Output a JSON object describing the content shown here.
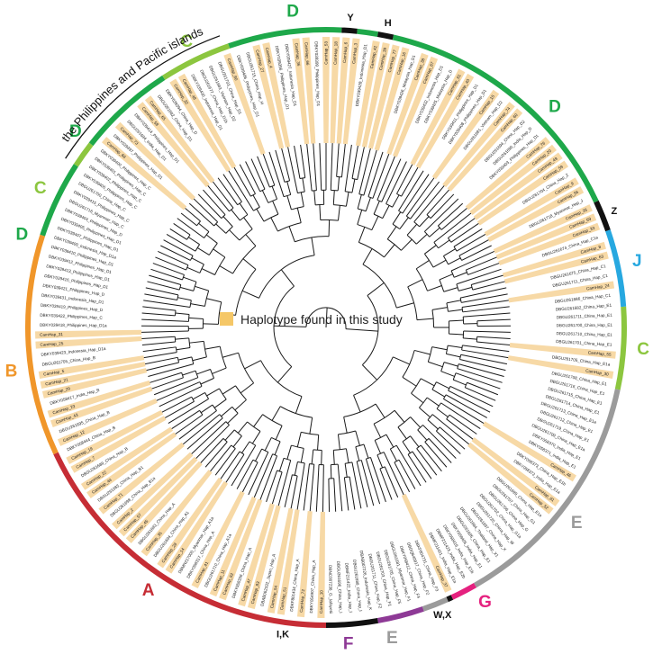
{
  "legend": {
    "text": "Haplotype found in this study",
    "color": "#F5C767"
  },
  "colors": {
    "A": "#C62D35",
    "B": "#F0962A",
    "C": "#8CC63F",
    "D": "#1EA84A",
    "E": "#9B9B9B",
    "F": "#8E3A96",
    "G": "#E5217F",
    "J": "#27A8E0",
    "black": "#111111",
    "highlight": "#F7D9A6",
    "branch": "#1a1a1a"
  },
  "region_label": "the Philippines and Pacific islands",
  "clades": [
    {
      "label": "A",
      "color": "#C62D35",
      "start": 90,
      "end": 155
    },
    {
      "label": "B",
      "color": "#F0962A",
      "start": 155,
      "end": 198
    },
    {
      "label": "D",
      "color": "#1EA84A",
      "start": 198,
      "end": 213
    },
    {
      "label": "C",
      "color": "#8CC63F",
      "start": 213,
      "end": 218
    },
    {
      "label": "D",
      "color": "#1EA84A",
      "start": 218,
      "end": 237
    },
    {
      "label": "C",
      "color": "#8CC63F",
      "start": 237,
      "end": 251
    },
    {
      "label": "D",
      "color": "#1EA84A",
      "start": 251,
      "end": 273
    },
    {
      "label": "Y",
      "color": "#111111",
      "start": 273,
      "end": 276
    },
    {
      "label": "",
      "color": "#1EA84A",
      "start": 276,
      "end": 280
    },
    {
      "label": "H",
      "color": "#111111",
      "start": 280,
      "end": 283
    },
    {
      "label": "D",
      "color": "#1EA84A",
      "start": 283,
      "end": 335
    },
    {
      "label": "Z",
      "color": "#111111",
      "start": 335,
      "end": 341
    },
    {
      "label": "J",
      "color": "#27A8E0",
      "start": 341,
      "end": 356
    },
    {
      "label": "C",
      "color": "#8CC63F",
      "start": 356,
      "end": 372
    },
    {
      "label": "E",
      "color": "#9B9B9B",
      "start": 372,
      "end": 420
    },
    {
      "label": "G",
      "color": "#E5217F",
      "start": 420,
      "end": 425
    },
    {
      "label": "W,X",
      "color": "#111111",
      "start": 425,
      "end": 426
    },
    {
      "label": "E",
      "color": "#9B9B9B",
      "start": 426,
      "end": 431
    },
    {
      "label": "F",
      "color": "#8E3A96",
      "start": 431,
      "end": 440
    },
    {
      "label": "I,K",
      "color": "#111111",
      "start": 440,
      "end": 450
    }
  ],
  "clade_labels": [
    {
      "text": "A",
      "color": "#C62D35",
      "angle": 124
    },
    {
      "text": "B",
      "color": "#F0962A",
      "angle": 172
    },
    {
      "text": "D",
      "color": "#1EA84A",
      "angle": 197
    },
    {
      "text": "C",
      "color": "#8CC63F",
      "angle": 206
    },
    {
      "text": "D",
      "color": "#1EA84A",
      "angle": 218
    },
    {
      "text": "C",
      "color": "#8CC63F",
      "angle": 244
    },
    {
      "text": "D",
      "color": "#1EA84A",
      "angle": 264
    },
    {
      "text": "Y",
      "color": "#111111",
      "angle": 274.5
    },
    {
      "text": "H",
      "color": "#111111",
      "angle": 281.5
    },
    {
      "text": "D",
      "color": "#1EA84A",
      "angle": 316
    },
    {
      "text": "Z",
      "color": "#111111",
      "angle": 338
    },
    {
      "text": "J",
      "color": "#27A8E0",
      "angle": 348
    },
    {
      "text": "C",
      "color": "#8CC63F",
      "angle": 364
    },
    {
      "text": "E",
      "color": "#9B9B9B",
      "angle": 398
    },
    {
      "text": "G",
      "color": "#E5217F",
      "angle": 420
    },
    {
      "text": "W,X",
      "color": "#111111",
      "angle": 428
    },
    {
      "text": "E",
      "color": "#9B9B9B",
      "angle": 438
    },
    {
      "text": "F",
      "color": "#8E3A96",
      "angle": 446
    },
    {
      "text": "I,K",
      "color": "#111111",
      "angle": 458
    }
  ],
  "leaves": [
    {
      "text": "CamHap_10",
      "highlight": true
    },
    {
      "text": "DBKY054907_China_Hap_A",
      "highlight": false
    },
    {
      "text": "CamHap_72",
      "highlight": true
    },
    {
      "text": "DBKF801434_China_Hap_A",
      "highlight": false
    },
    {
      "text": "CamHap_51",
      "highlight": true
    },
    {
      "text": "CamHap_54",
      "highlight": true
    },
    {
      "text": "DBAB062332_Japan_Hap_A",
      "highlight": false
    },
    {
      "text": "CamHap_83",
      "highlight": true
    },
    {
      "text": "CamHap_47",
      "highlight": true
    },
    {
      "text": "DBKY058336_China_Hap_A",
      "highlight": false
    },
    {
      "text": "CamHap_62",
      "highlight": true
    },
    {
      "text": "CamHap_11",
      "highlight": true
    },
    {
      "text": "DBGU261710_China_Hap_A1a",
      "highlight": false
    },
    {
      "text": "CamHap_41",
      "highlight": true
    },
    {
      "text": "DBKY058317_China_Hap_A",
      "highlight": false
    },
    {
      "text": "DBMN217000_Myanmar_Hap_A1a",
      "highlight": false
    },
    {
      "text": "CamHap_14",
      "highlight": true
    },
    {
      "text": "CamHap_28",
      "highlight": true
    },
    {
      "text": "DBGU261694_China_Hap_A1",
      "highlight": false
    },
    {
      "text": "CamHap_35",
      "highlight": true
    },
    {
      "text": "DBGU261683_China_Hap_A",
      "highlight": false
    },
    {
      "text": "CamHap_45",
      "highlight": true
    },
    {
      "text": "CamHap_57",
      "highlight": true
    },
    {
      "text": "CamHap_2",
      "highlight": true
    },
    {
      "text": "DBGU261698_China_Hap_B1a",
      "highlight": false
    },
    {
      "text": "CamHap_71",
      "highlight": true
    },
    {
      "text": "DBGU261683_China_Hap_B1",
      "highlight": false
    },
    {
      "text": "CamHap_44",
      "highlight": true
    },
    {
      "text": "CamHap_22",
      "highlight": true
    },
    {
      "text": "DBGU261689_China_Hap_B",
      "highlight": false
    },
    {
      "text": "CamHap_7",
      "highlight": true
    },
    {
      "text": "CamHap_19",
      "highlight": true
    },
    {
      "text": "DBKY058444_China_Hap_B",
      "highlight": false
    },
    {
      "text": "CamHap_12",
      "highlight": true
    },
    {
      "text": "DBGU261695_China_Hap_B",
      "highlight": false
    },
    {
      "text": "CamHap_43",
      "highlight": true
    },
    {
      "text": "CamHap_23",
      "highlight": true
    },
    {
      "text": "DBKY058417_India_Hap_B",
      "highlight": false
    },
    {
      "text": "CamHap_29",
      "highlight": true
    },
    {
      "text": "CamHap_21",
      "highlight": true
    },
    {
      "text": "CamHap_5",
      "highlight": true
    },
    {
      "text": "DBGU261705_China_Hap_B",
      "highlight": false
    },
    {
      "text": "DBKY039423_Indonesia_Hap_D1a",
      "highlight": false
    },
    {
      "text": "CamHap_25",
      "highlight": true
    },
    {
      "text": "CamHap_31",
      "highlight": true
    },
    {
      "text": "DBKY039418_Philippines_Hap_D1a",
      "highlight": false
    },
    {
      "text": "DBKY039422_Philippines_Hap_C",
      "highlight": false
    },
    {
      "text": "DBKY039419_Philippines_Hap_D",
      "highlight": false
    },
    {
      "text": "DBKY039431_Indonesia_Hap_D1",
      "highlight": false
    },
    {
      "text": "DBKY039421_Philippines_Hap_D",
      "highlight": false
    },
    {
      "text": "DBKY039416_Philippines_Hap_D1",
      "highlight": false
    },
    {
      "text": "DBKY039413_Philippines_Hap_D1",
      "highlight": false
    },
    {
      "text": "DBKY039412_Philippines_Hap_D1",
      "highlight": false
    },
    {
      "text": "DBKY039410_Philippines_Hap_D1",
      "highlight": false
    },
    {
      "text": "DBKY039409_Indonesia_Hap_D1a",
      "highlight": false
    },
    {
      "text": "DBKY039407_Philippines_Hap_D1",
      "highlight": false
    },
    {
      "text": "DBKY039405_Philippines_Hap_D1",
      "highlight": false
    },
    {
      "text": "DBKY039404_Philippines_Hap_D",
      "highlight": false
    },
    {
      "text": "DBGU261716_Myanmar_Hap_C",
      "highlight": false
    },
    {
      "text": "DBKY039415_Philippines_Hap_C",
      "highlight": false
    },
    {
      "text": "DBGU261700_China_Hap_C",
      "highlight": false
    },
    {
      "text": "DBKY039406_Philippines_Hap_C",
      "highlight": false
    },
    {
      "text": "DBKY039402_Philippines_Hap_C",
      "highlight": false
    },
    {
      "text": "DBKY039401_Philippines_Hap_C",
      "highlight": false
    },
    {
      "text": "DBKY039400_Philippines_Hap_C",
      "highlight": false
    },
    {
      "text": "CamHap_68",
      "highlight": true
    },
    {
      "text": "DBKY039397_Philippines_Hap_D1",
      "highlight": false
    },
    {
      "text": "CamHap_73",
      "highlight": true
    },
    {
      "text": "DBGU261694_India_Hap_D1",
      "highlight": false
    },
    {
      "text": "DBKY039414_Philippines_Hap_D1",
      "highlight": false
    },
    {
      "text": "CamHap_58",
      "highlight": true
    },
    {
      "text": "CamHap_65",
      "highlight": true
    },
    {
      "text": "DBGU261682_China_Hap_D1",
      "highlight": false
    },
    {
      "text": "DBKY039394_China_Hap_D",
      "highlight": false
    },
    {
      "text": "CamHap_32",
      "highlight": true
    },
    {
      "text": "CamHap_48",
      "highlight": true
    },
    {
      "text": "DBKY039430_Indonesia_Hap_D1",
      "highlight": false
    },
    {
      "text": "DBGU261677_China_Hap_D1b",
      "highlight": false
    },
    {
      "text": "DBGU261683_Vietnam_Hap_D2",
      "highlight": false
    },
    {
      "text": "DBGU261703_China_Hap_D1",
      "highlight": false
    },
    {
      "text": "CamHap_80",
      "highlight": true
    },
    {
      "text": "DBKY039406_Philippines_Hap_D1",
      "highlight": false
    },
    {
      "text": "DBGU261715_China_Hap_H",
      "highlight": false
    },
    {
      "text": "CamHap_27",
      "highlight": true
    },
    {
      "text": "CamHap_4",
      "highlight": true
    },
    {
      "text": "DBKY039396_Philippines_Hap_D1",
      "highlight": false
    },
    {
      "text": "DBKY039427_Indonesia_Hap_D1",
      "highlight": false
    },
    {
      "text": "CamHap_36",
      "highlight": true
    },
    {
      "text": "CamHap_66",
      "highlight": true
    },
    {
      "text": "DBKY039399_Philippines_Hap_D1",
      "highlight": false
    },
    {
      "text": "CamHap_53",
      "highlight": true
    },
    {
      "text": "CamHap_18",
      "highlight": true
    },
    {
      "text": "CamHap_6",
      "highlight": true
    },
    {
      "text": "CamHap_3",
      "highlight": true
    },
    {
      "text": "DBKY039428_Indonesia_Hap_D1",
      "highlight": false
    },
    {
      "text": "CamHap_42",
      "highlight": true
    },
    {
      "text": "CamHap_39",
      "highlight": true
    },
    {
      "text": "CamHap_77",
      "highlight": true
    },
    {
      "text": "CamHap_16",
      "highlight": true
    },
    {
      "text": "DBKY039426_Malaysia_Hap_D1",
      "highlight": false
    },
    {
      "text": "CamHap_38",
      "highlight": true
    },
    {
      "text": "CamHap_67",
      "highlight": true
    },
    {
      "text": "DBKY039432_Indonesia_Hap_D1",
      "highlight": false
    },
    {
      "text": "DBKY039425_Malaysia_Hap_D",
      "highlight": false
    },
    {
      "text": "CamHap_61",
      "highlight": true
    },
    {
      "text": "CamHap_40",
      "highlight": true
    },
    {
      "text": "DBKY039411_Philippines_Hap_D1",
      "highlight": false
    },
    {
      "text": "DBKY039408_Philippines_Hap_D1",
      "highlight": false
    },
    {
      "text": "CamHap_15",
      "highlight": true
    },
    {
      "text": "DBGU261681_Vietnam_Hap_D2",
      "highlight": false
    },
    {
      "text": "CamHap_74",
      "highlight": true
    },
    {
      "text": "CamHap_60",
      "highlight": true
    },
    {
      "text": "DBGU261694_China_Hap_D2",
      "highlight": false
    },
    {
      "text": "DBGU261690_India_Hap_D",
      "highlight": false
    },
    {
      "text": "DBKY039403_Philippines_Hap_D1",
      "highlight": false
    },
    {
      "text": "CamHap_76",
      "highlight": true
    },
    {
      "text": "CamHap_20",
      "highlight": true
    },
    {
      "text": "CamHap_49",
      "highlight": true
    },
    {
      "text": "CamHap_59",
      "highlight": true
    },
    {
      "text": "DBGU261704_China_Hap_Z",
      "highlight": false
    },
    {
      "text": "CamHap_9",
      "highlight": true
    },
    {
      "text": "CamHap_56",
      "highlight": true
    },
    {
      "text": "DBGU261718_Myanmar_Hap_J",
      "highlight": false
    },
    {
      "text": "CamHap_26",
      "highlight": true
    },
    {
      "text": "CamHap_69",
      "highlight": true
    },
    {
      "text": "CamHap_33",
      "highlight": true
    },
    {
      "text": "DBGU261674_China_Hap_C1a",
      "highlight": false
    },
    {
      "text": "CamHap_8",
      "highlight": true
    },
    {
      "text": "CamHap_63",
      "highlight": true
    },
    {
      "text": "DBGU261675_China_Hap_C1",
      "highlight": false
    },
    {
      "text": "DBGU261711_China_Hap_C1",
      "highlight": false
    },
    {
      "text": "CamHap_24",
      "highlight": true
    },
    {
      "text": "DBGU261686_China_Hap_C1",
      "highlight": false
    },
    {
      "text": "DBGU261682_China_Hap_E1",
      "highlight": false
    },
    {
      "text": "DBGU261711_China_Hap_E1",
      "highlight": false
    },
    {
      "text": "DBGU261700_China_Hap_E1",
      "highlight": false
    },
    {
      "text": "DBGU261710_China_Hap_E1",
      "highlight": false
    },
    {
      "text": "DBGU261701_China_Hap_E1",
      "highlight": false
    },
    {
      "text": "CamHap_55",
      "highlight": true
    },
    {
      "text": "DBGU261705_China_Hap_E1a",
      "highlight": false
    },
    {
      "text": "CamHap_30",
      "highlight": true
    },
    {
      "text": "DBGU261708_China_Hap_E1",
      "highlight": false
    },
    {
      "text": "DBGU261716_China_Hap_E1",
      "highlight": false
    },
    {
      "text": "DBGU261715_China_Hap_E1",
      "highlight": false
    },
    {
      "text": "DBGU261714_China_Hap_E1",
      "highlight": false
    },
    {
      "text": "DBGU261713_China_Hap_E1a",
      "highlight": false
    },
    {
      "text": "DBGU261712_China_Hap_E1",
      "highlight": false
    },
    {
      "text": "DBGU261719_China_Hap_E1",
      "highlight": false
    },
    {
      "text": "DBGU261709_China_Hap_E1a",
      "highlight": false
    },
    {
      "text": "DBKY058370_India_Hap_E1",
      "highlight": false
    },
    {
      "text": "DBKY058371_India_Hap_E1",
      "highlight": false
    },
    {
      "text": "CamHap_46",
      "highlight": true
    },
    {
      "text": "DBKY058373_China_Hap_E1b",
      "highlight": false
    },
    {
      "text": "DBKY058372_India_Hap_E1a",
      "highlight": false
    },
    {
      "text": "CamHap_81",
      "highlight": true
    },
    {
      "text": "CamHap_52",
      "highlight": true
    },
    {
      "text": "DBGU261699_China_Hap_E1a",
      "highlight": false
    },
    {
      "text": "DBGU261707_China_Hap_G1",
      "highlight": false
    },
    {
      "text": "DBGU261706_China_Hap_G",
      "highlight": false
    },
    {
      "text": "DBGU261702_China_Hap_G1a",
      "highlight": false
    },
    {
      "text": "DBGU261720_China_Hap_W",
      "highlight": false
    },
    {
      "text": "DBGU261697_China_Hap_X",
      "highlight": false
    },
    {
      "text": "DBGU261684_Thailand_Hap_X1",
      "highlight": false
    },
    {
      "text": "DBGU261695_China_Hap_E1",
      "highlight": false
    },
    {
      "text": "DBKY058405_India_Hap_E1",
      "highlight": false
    },
    {
      "text": "DBKY058416_India_Hap_E1b",
      "highlight": false
    },
    {
      "text": "DBMF211423_India_Hap_E2b",
      "highlight": false
    },
    {
      "text": "DBMF211421_India_Hap_E1a",
      "highlight": false
    },
    {
      "text": "CamHap_37",
      "highlight": true
    },
    {
      "text": "DBKF804731_China_Hap_F3",
      "highlight": false
    },
    {
      "text": "DBDQ640917_China_Hap_F2",
      "highlight": false
    },
    {
      "text": "DBKY058412_China_Hap_F4",
      "highlight": false
    },
    {
      "text": "DBGU261681_Myanmar_Hap_F1",
      "highlight": false
    },
    {
      "text": "DBGU261705_China_Hap_F5",
      "highlight": false
    },
    {
      "text": "DBGU261703_China_Hap_F1",
      "highlight": false
    },
    {
      "text": "DBGU261711_China_Hap_F2",
      "highlight": false
    },
    {
      "text": "DBAB007226_Indonesia_Hap_K",
      "highlight": false
    },
    {
      "text": "DBGU261688_China_Hap_I",
      "highlight": false
    },
    {
      "text": "DBMF211422_India_Hap_I",
      "highlight": false
    },
    {
      "text": "DBGU261696_China_Hap_I",
      "highlight": false
    },
    {
      "text": "DBNC007236_G._lafayetii",
      "highlight": false
    }
  ]
}
